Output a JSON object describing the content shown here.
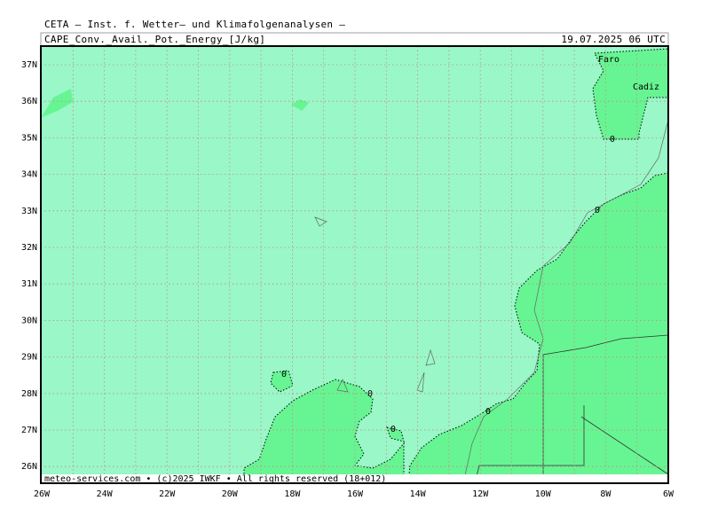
{
  "header": {
    "line1": "CETA — Inst. f. Wetter— und Klimafolgenanalysen —",
    "parameter": "CAPE_Conv._Avail._Pot._Energy_[J/kg]",
    "valid": "19.07.2025 06 UTC"
  },
  "map": {
    "lat_labels": [
      "37N",
      "36N",
      "35N",
      "34N",
      "33N",
      "32N",
      "31N",
      "30N",
      "29N",
      "28N",
      "27N",
      "26N"
    ],
    "lon_labels": [
      "26W",
      "24W",
      "22W",
      "20W",
      "18W",
      "16W",
      "14W",
      "12W",
      "10W",
      "8W",
      "6W"
    ],
    "contour_labels": [
      "0",
      "0",
      "0",
      "0",
      "0",
      "0"
    ],
    "places": [
      "Faro",
      "Cadiz"
    ]
  },
  "footer": "meteo-services.com • (c)2025 IWKF • All rights reserved (18+012)"
}
